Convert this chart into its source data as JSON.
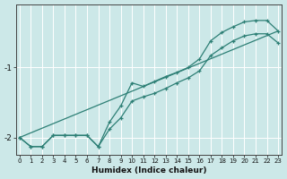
{
  "xlabel": "Humidex (Indice chaleur)",
  "ylabel": "",
  "x": [
    0,
    1,
    2,
    3,
    4,
    5,
    6,
    7,
    8,
    9,
    10,
    11,
    12,
    13,
    14,
    15,
    16,
    17,
    18,
    19,
    20,
    21,
    22,
    23
  ],
  "line1": [
    -2.0,
    -2.13,
    -2.13,
    -1.97,
    -1.97,
    -1.97,
    -1.97,
    -2.13,
    -1.78,
    -1.55,
    -1.22,
    -1.27,
    -1.2,
    -1.13,
    -1.07,
    -1.0,
    -0.88,
    -0.62,
    -0.5,
    -0.42,
    -0.35,
    -0.33,
    -0.33,
    -0.48
  ],
  "line2": [
    -2.0,
    -2.13,
    -2.13,
    -1.97,
    -1.97,
    -1.97,
    -1.97,
    -2.13,
    -1.88,
    -1.72,
    -1.48,
    -1.42,
    -1.37,
    -1.3,
    -1.22,
    -1.15,
    -1.05,
    -0.83,
    -0.72,
    -0.62,
    -0.55,
    -0.52,
    -0.52,
    -0.65
  ],
  "line3_x": [
    0,
    23
  ],
  "line3_y": [
    -2.0,
    -0.48
  ],
  "bg_color": "#cce8e8",
  "line_color": "#2d7f75",
  "grid_color": "#ffffff",
  "yticks": [
    -2,
    -1
  ],
  "xticks": [
    0,
    1,
    2,
    3,
    4,
    5,
    6,
    7,
    8,
    9,
    10,
    11,
    12,
    13,
    14,
    15,
    16,
    17,
    18,
    19,
    20,
    21,
    22,
    23
  ],
  "ylim": [
    -2.25,
    -0.1
  ],
  "xlim": [
    -0.3,
    23.3
  ]
}
